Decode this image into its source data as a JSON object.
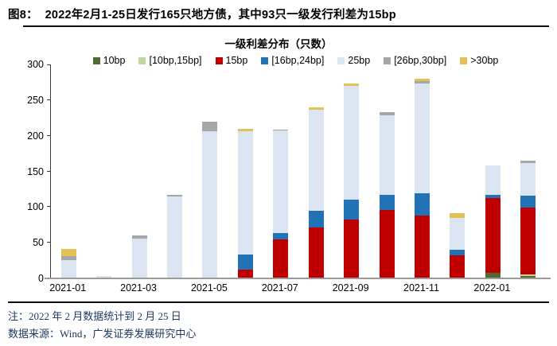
{
  "figure": {
    "label": "图8：",
    "title": "2022年2月1-25日发行165只地方债，其中93只一级发行利差为15bp",
    "note": "注：2022 年 2 月数据统计到 2 月 25 日",
    "source": "数据来源：Wind，广发证券发展研究中心"
  },
  "chart_data": {
    "type": "bar",
    "stacked": true,
    "title": "一级利差分布（只数）",
    "xlabel": "",
    "ylabel": "",
    "ylim": [
      0,
      300
    ],
    "y_ticks": [
      0,
      50,
      100,
      150,
      200,
      250,
      300
    ],
    "grid": false,
    "legend_position": "top",
    "categories": [
      "2021-01",
      "2021-02",
      "2021-03",
      "2021-04",
      "2021-05",
      "2021-06",
      "2021-07",
      "2021-08",
      "2021-09",
      "2021-10",
      "2021-11",
      "2021-12",
      "2022-01",
      "2022-02"
    ],
    "x_tick_labels": [
      "2021-01",
      "2021-03",
      "2021-05",
      "2021-07",
      "2021-09",
      "2021-11",
      "2022-01"
    ],
    "series": [
      {
        "name": "10bp",
        "color": "#4f6b2f",
        "values": [
          0,
          0,
          0,
          0,
          0,
          0,
          0,
          0,
          0,
          0,
          0,
          0,
          8,
          3
        ]
      },
      {
        "name": "[10bp,15bp]",
        "color": "#c3d69b",
        "values": [
          0,
          0,
          0,
          0,
          0,
          0,
          0,
          0,
          0,
          0,
          0,
          0,
          0,
          3
        ]
      },
      {
        "name": "15bp",
        "color": "#c00000",
        "values": [
          0,
          0,
          0,
          0,
          0,
          12,
          55,
          71,
          82,
          96,
          88,
          32,
          105,
          93
        ]
      },
      {
        "name": "[16bp,24bp]",
        "color": "#2272b6",
        "values": [
          0,
          0,
          0,
          0,
          0,
          22,
          9,
          24,
          28,
          21,
          31,
          8,
          4,
          17
        ]
      },
      {
        "name": "25bp",
        "color": "#dbe5f1",
        "values": [
          26,
          3,
          56,
          115,
          206,
          172,
          143,
          142,
          160,
          112,
          154,
          45,
          41,
          46
        ]
      },
      {
        "name": "[26bp,30bp]",
        "color": "#a6a6a6",
        "values": [
          5,
          0,
          4,
          2,
          14,
          0,
          2,
          0,
          0,
          4,
          4,
          0,
          0,
          3
        ]
      },
      {
        "name": ">30bp",
        "color": "#e3c156",
        "values": [
          10,
          0,
          0,
          0,
          0,
          4,
          0,
          3,
          3,
          0,
          3,
          7,
          0,
          0
        ]
      }
    ],
    "totals": [
      41,
      3,
      60,
      117,
      220,
      210,
      209,
      240,
      273,
      233,
      280,
      92,
      158,
      165
    ]
  }
}
